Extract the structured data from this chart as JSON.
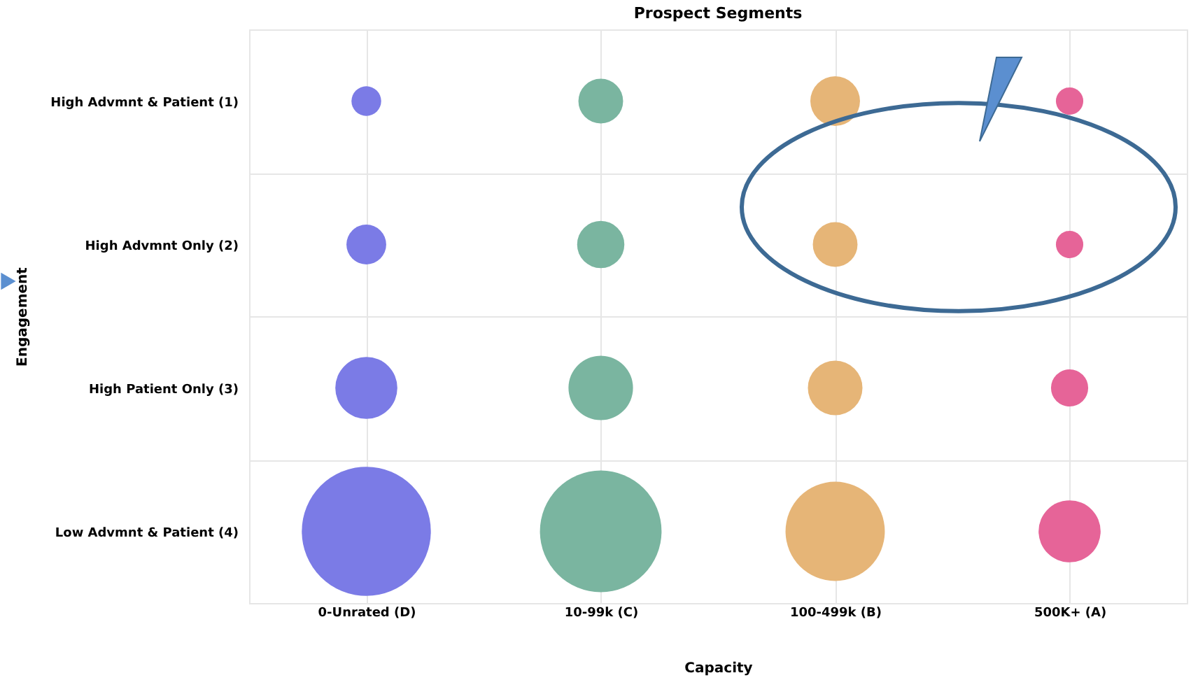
{
  "chart_data": {
    "type": "bubble",
    "title": "Prospect Segments",
    "xlabel": "Capacity",
    "ylabel": "Engagement",
    "grid": true,
    "legend": false,
    "categories": [
      "0-Unrated (D)",
      "10-99k (C)",
      "100-499k (B)",
      "500K+ (A)"
    ],
    "ylim": [
      4.5,
      0.5
    ],
    "yticks": [
      {
        "value": 0.5,
        "label": null
      },
      {
        "value": 1,
        "label": "High Advmnt & Patient (1)"
      },
      {
        "value": 1.5,
        "label": null
      },
      {
        "value": 2,
        "label": "High Advmnt Only (2)"
      },
      {
        "value": 2.5,
        "label": null
      },
      {
        "value": 3,
        "label": "High Patient Only (3)"
      },
      {
        "value": 3.5,
        "label": null
      },
      {
        "value": 4,
        "label": "Low Advmnt & Patient (4)"
      },
      {
        "value": 4.5,
        "label": null
      }
    ],
    "series": [
      {
        "colors": [
          "#7b7be6",
          "#7ab5a0",
          "#e6b577",
          "#e66498"
        ],
        "values": [
          1,
          1,
          1,
          1
        ],
        "sizes": [
          0.053,
          0.12,
          0.148,
          0.045
        ]
      },
      {
        "colors": [
          "#7b7be6",
          "#7ab5a0",
          "#e6b577",
          "#e66498"
        ],
        "values": [
          2,
          2,
          2,
          2
        ],
        "sizes": [
          0.095,
          0.134,
          0.12,
          0.045
        ]
      },
      {
        "colors": [
          "#7b7be6",
          "#7ab5a0",
          "#e6b577",
          "#e66498"
        ],
        "values": [
          3,
          3,
          3,
          3
        ],
        "sizes": [
          0.231,
          0.25,
          0.179,
          0.083
        ]
      },
      {
        "colors": [
          "#7b7be6",
          "#7ab5a0",
          "#e6b577",
          "#e66498"
        ],
        "values": [
          4,
          4,
          4,
          4
        ],
        "sizes": [
          1,
          0.888,
          0.592,
          0.231
        ]
      }
    ]
  }
}
